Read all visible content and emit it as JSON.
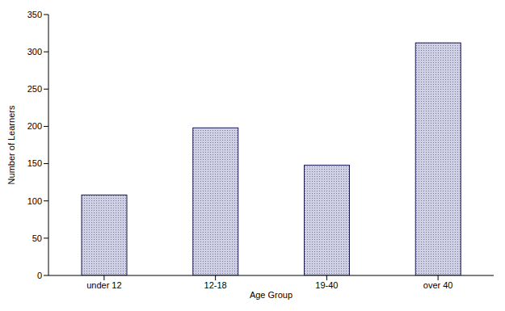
{
  "chart_data": {
    "type": "bar",
    "categories": [
      "under 12",
      "12-18",
      "19-40",
      "over 40"
    ],
    "values": [
      108,
      198,
      148,
      312
    ],
    "color": "#d0d0e4",
    "x_label": "Age Group",
    "y_label": "Number of Learners",
    "ylim": [
      0,
      350
    ],
    "yticks": [
      0,
      50,
      100,
      150,
      200,
      250,
      300,
      350
    ],
    "grid": false
  }
}
